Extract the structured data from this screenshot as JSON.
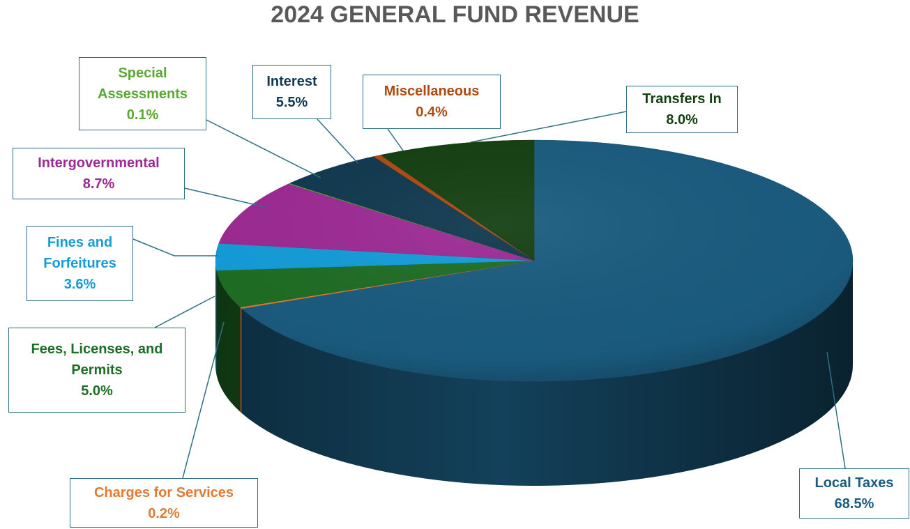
{
  "chart_data": {
    "type": "pie",
    "title": "2024 GENERAL FUND REVENUE",
    "categories": [
      "Local Taxes",
      "Charges for Services",
      "Fees, Licenses, and Permits",
      "Fines and Forfeitures",
      "Intergovernmental",
      "Special Assessments",
      "Interest",
      "Miscellaneous",
      "Transfers In"
    ],
    "values": [
      68.5,
      0.2,
      5.0,
      3.6,
      8.7,
      0.1,
      5.5,
      0.4,
      8.0
    ],
    "value_labels": [
      "68.5%",
      "0.2%",
      "5.0%",
      "3.6%",
      "8.7%",
      "0.1%",
      "5.5%",
      "0.4%",
      "8.0%"
    ],
    "colors": [
      "#1a5b7e",
      "#e27a32",
      "#1e6d24",
      "#139cd8",
      "#9c2a93",
      "#5aa833",
      "#10384f",
      "#b0480f",
      "#143f12"
    ]
  }
}
